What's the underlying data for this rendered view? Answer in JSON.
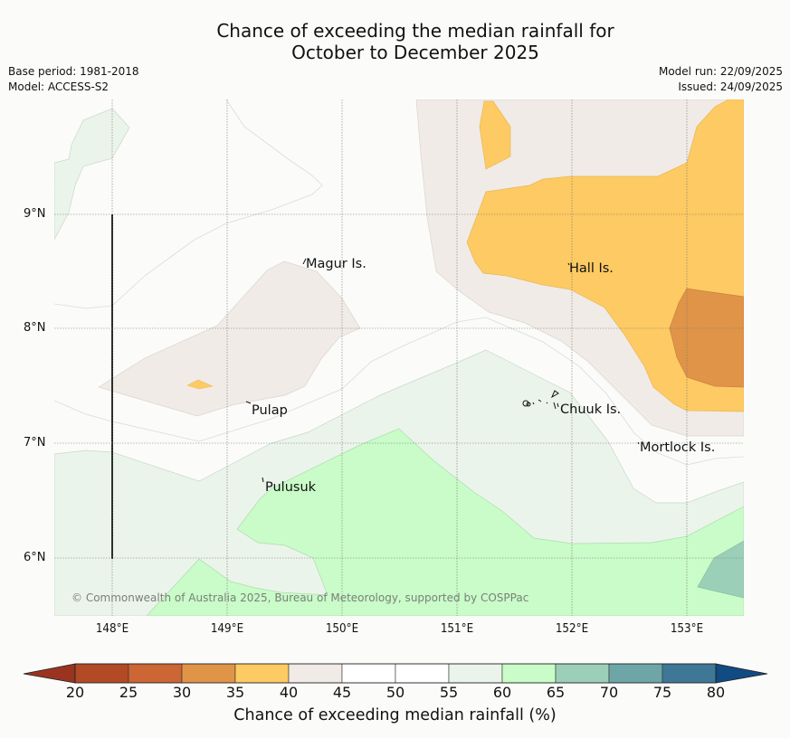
{
  "title": {
    "line1": "Chance of exceeding the median rainfall for",
    "line2": "October to December 2025"
  },
  "meta_left": {
    "base_period": "Base period: 1981-2018",
    "model": "Model: ACCESS-S2"
  },
  "meta_right": {
    "model_run": "Model run: 22/09/2025",
    "issued": "Issued: 24/09/2025"
  },
  "map": {
    "latitude_labels": [
      "9°N",
      "8°N",
      "7°N",
      "6°N"
    ],
    "longitude_labels": [
      "148°E",
      "149°E",
      "150°E",
      "151°E",
      "152°E",
      "153°E"
    ],
    "places": [
      {
        "name": "Magur Is."
      },
      {
        "name": "Hall Is."
      },
      {
        "name": "Pulap"
      },
      {
        "name": "Chuuk Is."
      },
      {
        "name": "Mortlock Is."
      },
      {
        "name": "Pulusuk"
      }
    ],
    "copyright": "© Commonwealth of Australia 2025, Bureau of Meteorology, supported by COSPPac"
  },
  "colorbar": {
    "label": "Chance of exceeding median rainfall (%)",
    "ticks": [
      "20",
      "25",
      "30",
      "35",
      "40",
      "45",
      "50",
      "55",
      "60",
      "65",
      "70",
      "75",
      "80"
    ],
    "under_color": "#9a3420",
    "over_color": "#124a84",
    "bins": [
      {
        "range": "20-25",
        "color": "#b24a26"
      },
      {
        "range": "25-30",
        "color": "#cc6634"
      },
      {
        "range": "30-35",
        "color": "#e09448"
      },
      {
        "range": "35-40",
        "color": "#fdca63"
      },
      {
        "range": "40-45",
        "color": "#f0ebe6"
      },
      {
        "range": "45-50",
        "color": "#ffffff"
      },
      {
        "range": "50-55",
        "color": "#ffffff"
      },
      {
        "range": "55-60",
        "color": "#ebf4ea"
      },
      {
        "range": "60-65",
        "color": "#c9fcc8"
      },
      {
        "range": "65-70",
        "color": "#9ccfb8"
      },
      {
        "range": "70-75",
        "color": "#6ea6a8"
      },
      {
        "range": "75-80",
        "color": "#3f7896"
      }
    ]
  }
}
